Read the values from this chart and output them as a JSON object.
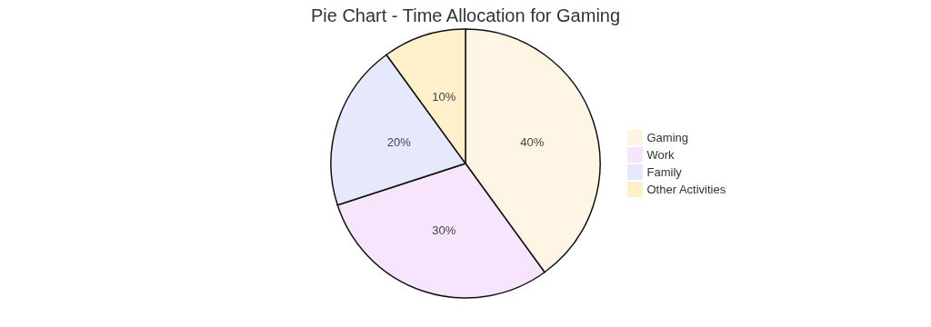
{
  "chart_data": {
    "type": "pie",
    "title": "Pie Chart - Time Allocation for Gaming",
    "categories": [
      "Gaming",
      "Work",
      "Family",
      "Other Activities"
    ],
    "values": [
      40,
      30,
      20,
      10
    ],
    "colors": [
      "#fff5e4",
      "#f6e5fd",
      "#e6e9fb",
      "#fff0cc"
    ],
    "value_labels": [
      "40%",
      "30%",
      "20%",
      "10%"
    ],
    "legend": "right"
  }
}
